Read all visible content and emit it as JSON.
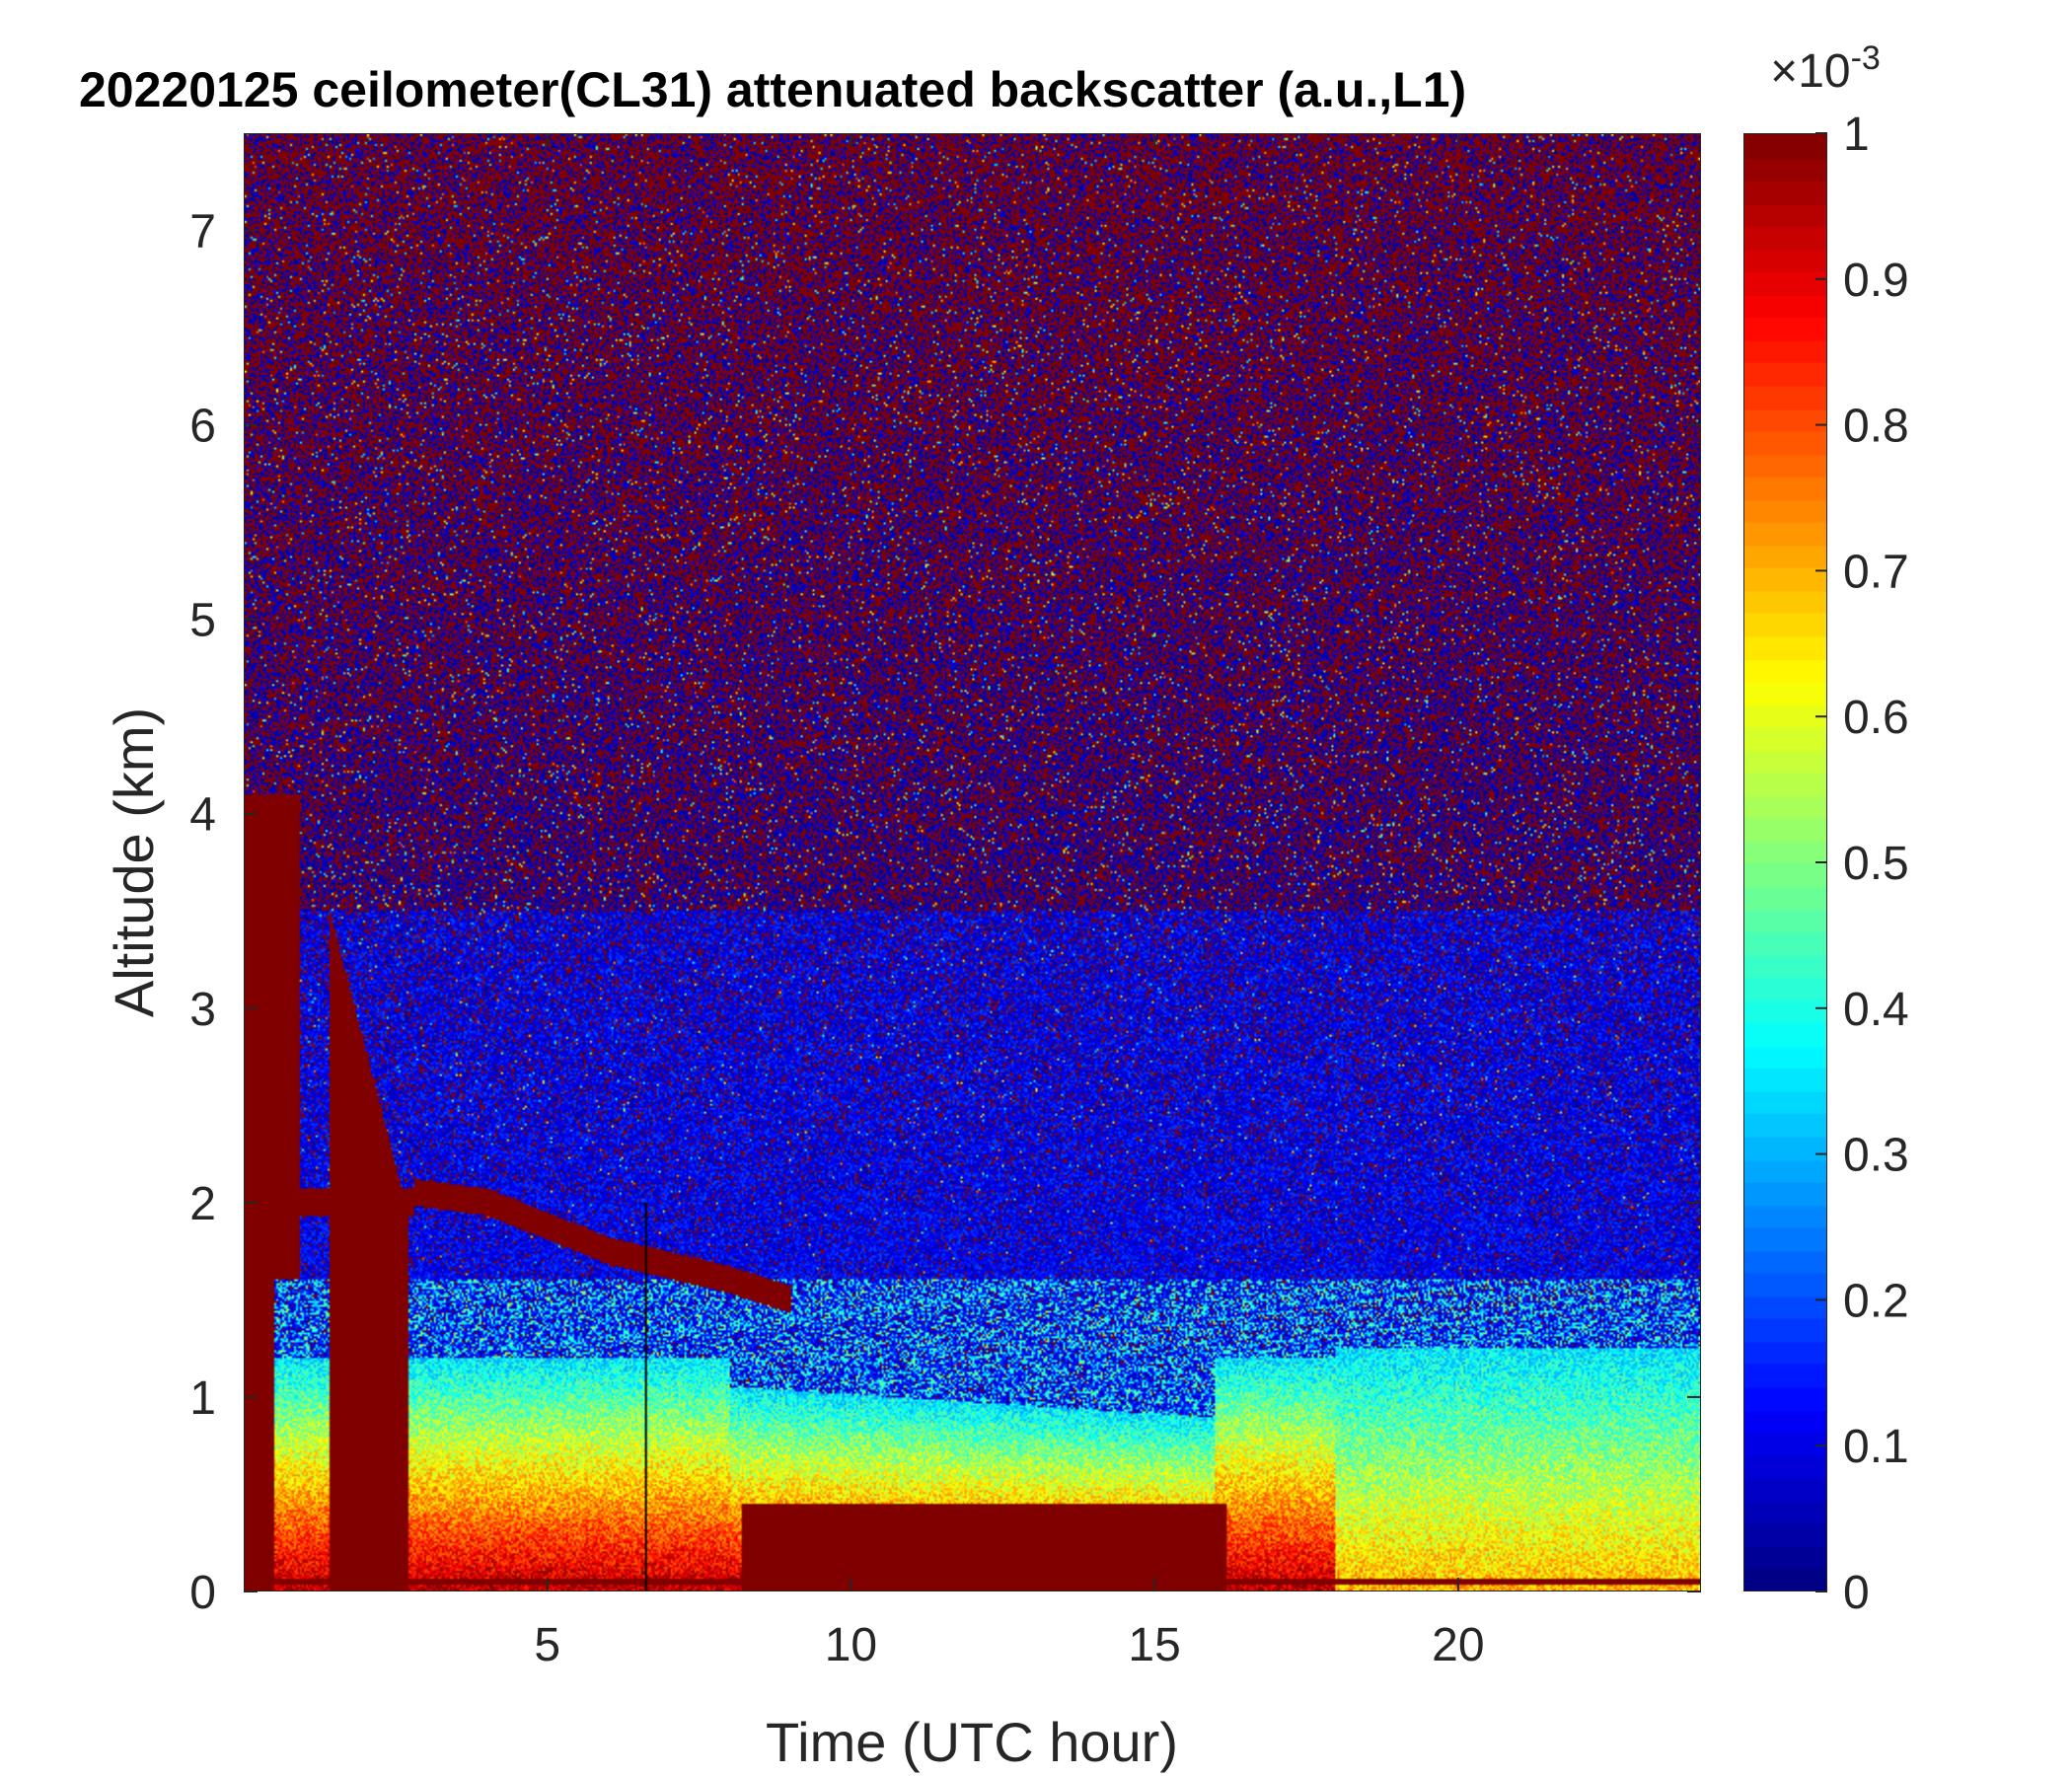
{
  "chart_data": {
    "type": "heatmap",
    "title": "20220125 ceilometer(CL31) attenuated backscatter (a.u.,L1)",
    "xlabel": "Time (UTC hour)",
    "ylabel": "Altitude (km)",
    "xlim": [
      0,
      24
    ],
    "ylim": [
      0,
      7.5
    ],
    "xticks": [
      5,
      10,
      15,
      20
    ],
    "yticks": [
      0,
      1,
      2,
      3,
      4,
      5,
      6,
      7
    ],
    "colormap": "jet",
    "clim": [
      0,
      0.001
    ],
    "colorbar": {
      "exponent_label": "×10",
      "exponent": "-3",
      "ticks": [
        0,
        0.1,
        0.2,
        0.3,
        0.4,
        0.5,
        0.6,
        0.7,
        0.8,
        0.9,
        1
      ]
    },
    "features": {
      "boundary_layer_top_km": [
        {
          "hour": 2.8,
          "alt": 2.05
        },
        {
          "hour": 4,
          "alt": 2.0
        },
        {
          "hour": 6,
          "alt": 1.75
        },
        {
          "hour": 8,
          "alt": 1.6
        },
        {
          "hour": 9,
          "alt": 1.5
        }
      ],
      "vertical_line_hour": 6.6
    }
  }
}
